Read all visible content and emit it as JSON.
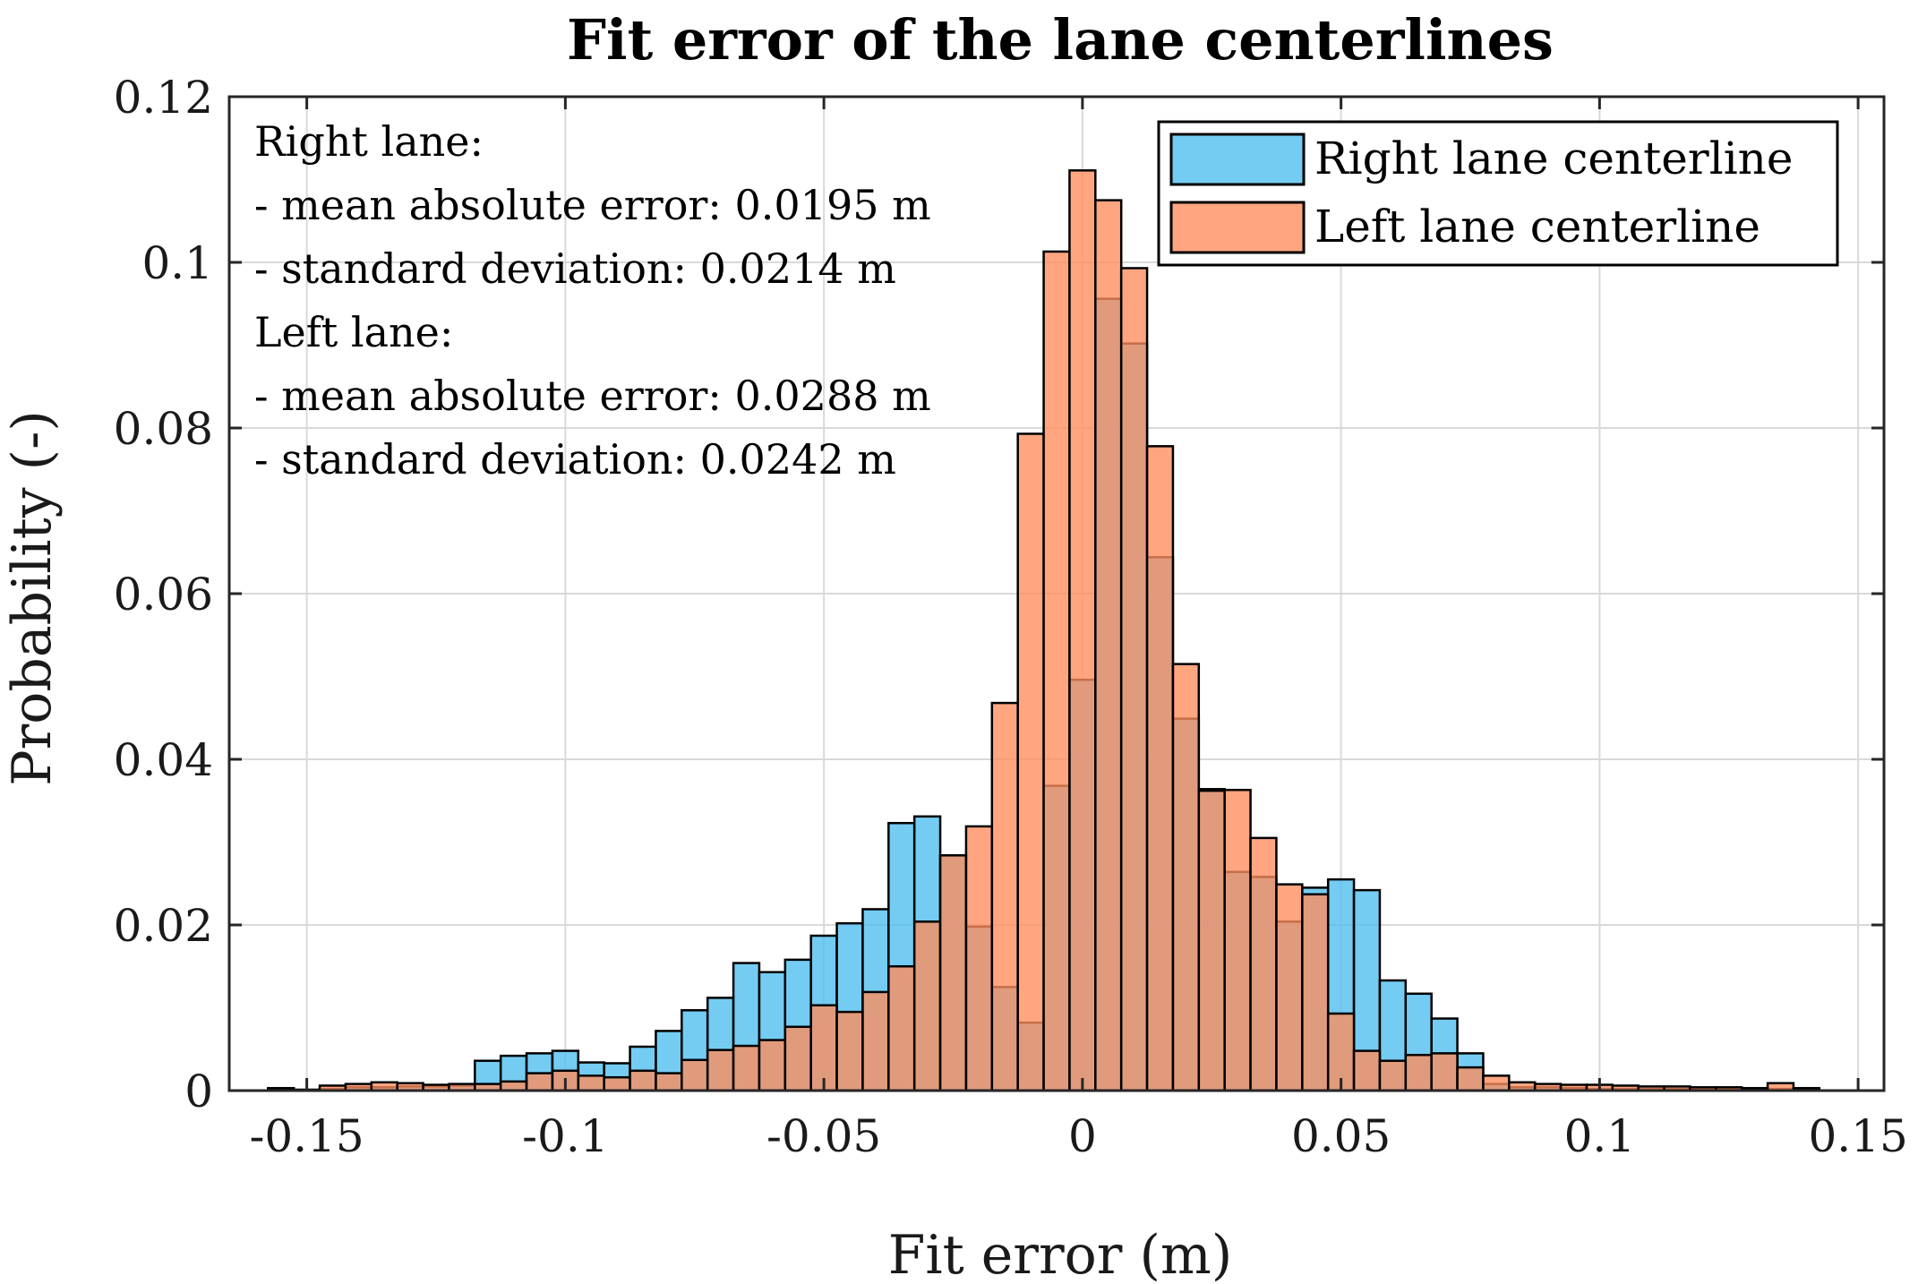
{
  "chart_data": {
    "type": "bar",
    "title": "Fit error of the lane centerlines",
    "xlabel": "Fit error (m)",
    "ylabel": "Probability (-)",
    "xlim": [
      -0.165,
      0.155
    ],
    "ylim": [
      0,
      0.12
    ],
    "xticks": [
      -0.15,
      -0.1,
      -0.05,
      0,
      0.05,
      0.1,
      0.15
    ],
    "xtick_labels": [
      "-0.15",
      "-0.1",
      "-0.05",
      "0",
      "0.05",
      "0.1",
      "0.15"
    ],
    "yticks": [
      0,
      0.02,
      0.04,
      0.06,
      0.08,
      0.1,
      0.12
    ],
    "ytick_labels": [
      "0",
      "0.02",
      "0.04",
      "0.06",
      "0.08",
      "0.1",
      "0.12"
    ],
    "grid": true,
    "legend_position": "top-right",
    "bin_width": 0.005,
    "bin_centers": [
      -0.155,
      -0.15,
      -0.145,
      -0.14,
      -0.135,
      -0.13,
      -0.125,
      -0.12,
      -0.115,
      -0.11,
      -0.105,
      -0.1,
      -0.095,
      -0.09,
      -0.085,
      -0.08,
      -0.075,
      -0.07,
      -0.065,
      -0.06,
      -0.055,
      -0.05,
      -0.045,
      -0.04,
      -0.035,
      -0.03,
      -0.025,
      -0.02,
      -0.015,
      -0.01,
      -0.005,
      0,
      0.005,
      0.01,
      0.015,
      0.02,
      0.025,
      0.03,
      0.035,
      0.04,
      0.045,
      0.05,
      0.055,
      0.06,
      0.065,
      0.07,
      0.075,
      0.08,
      0.085,
      0.09,
      0.095,
      0.1,
      0.105,
      0.11,
      0.115,
      0.12,
      0.125,
      0.13,
      0.135,
      0.14
    ],
    "series": [
      {
        "name": "Right lane centerline",
        "color": "#4DBEEE",
        "values": [
          0.0003,
          0.0001,
          0.0002,
          0.0004,
          0.0004,
          0.0005,
          0.0005,
          0.0006,
          0.0036,
          0.0042,
          0.0045,
          0.0048,
          0.0034,
          0.0033,
          0.0053,
          0.0072,
          0.0097,
          0.0112,
          0.0154,
          0.0143,
          0.0158,
          0.0187,
          0.0202,
          0.0219,
          0.0323,
          0.0331,
          0.0284,
          0.0198,
          0.0125,
          0.0082,
          0.0368,
          0.0496,
          0.0956,
          0.0902,
          0.0644,
          0.0449,
          0.0364,
          0.0264,
          0.0258,
          0.0204,
          0.0245,
          0.0255,
          0.0242,
          0.0133,
          0.0117,
          0.0087,
          0.0045,
          0.0008,
          0.0004,
          0.0004,
          0.0003,
          0.0002,
          0.0002,
          0.0002,
          0.0002,
          0.0002,
          0.0002,
          0.0002,
          0.0002,
          0.0003
        ]
      },
      {
        "name": "Left lane centerline",
        "color": "#FF8D5C",
        "values": [
          0.0001,
          0.0001,
          0.0006,
          0.0008,
          0.001,
          0.0009,
          0.0007,
          0.0008,
          0.0008,
          0.0011,
          0.0021,
          0.0024,
          0.0018,
          0.0016,
          0.0024,
          0.0021,
          0.0037,
          0.0049,
          0.0054,
          0.0061,
          0.0077,
          0.0103,
          0.0095,
          0.0119,
          0.015,
          0.0204,
          0.0284,
          0.0319,
          0.0468,
          0.0793,
          0.1013,
          0.1111,
          0.1075,
          0.0993,
          0.0778,
          0.0515,
          0.0362,
          0.0363,
          0.0305,
          0.0249,
          0.0237,
          0.0093,
          0.0048,
          0.0036,
          0.0043,
          0.0045,
          0.0028,
          0.0018,
          0.001,
          0.0008,
          0.0007,
          0.0007,
          0.0006,
          0.0005,
          0.0005,
          0.0004,
          0.0004,
          0.0003,
          0.0009,
          0.0002
        ]
      }
    ]
  },
  "annotation": {
    "lines": [
      "Right lane:",
      "- mean absolute error: 0.0195 m",
      "- standard deviation: 0.0214 m",
      "Left lane:",
      "- mean absolute error: 0.0288 m",
      "- standard deviation: 0.0242 m"
    ]
  }
}
